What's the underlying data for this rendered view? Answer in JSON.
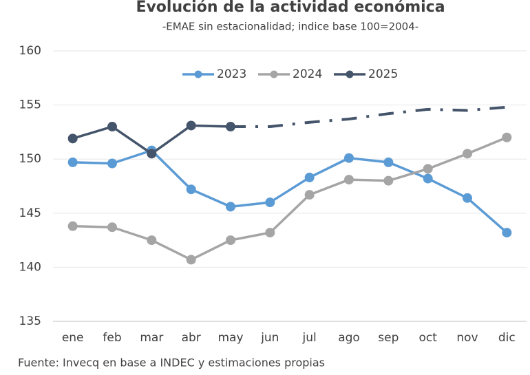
{
  "chart_data": {
    "type": "line",
    "title": "Evolución de la actividad económica",
    "subtitle": "-EMAE sin estacionalidad; indice base 100=2004-",
    "source": "Fuente: Invecq en base a INDEC y estimaciones propias",
    "categories": [
      "ene",
      "feb",
      "mar",
      "abr",
      "may",
      "jun",
      "jul",
      "ago",
      "sep",
      "oct",
      "nov",
      "dic"
    ],
    "series": [
      {
        "name": "2023",
        "color": "#5b9bd5",
        "values": [
          149.7,
          149.6,
          150.8,
          147.2,
          145.6,
          146.0,
          148.3,
          150.1,
          149.7,
          148.2,
          146.4,
          143.2
        ]
      },
      {
        "name": "2024",
        "color": "#a5a5a5",
        "values": [
          143.8,
          143.7,
          142.5,
          140.7,
          142.5,
          143.2,
          146.7,
          148.1,
          148.0,
          149.1,
          150.5,
          152.0
        ]
      },
      {
        "name": "2025",
        "color": "#44546a",
        "values": [
          151.9,
          153.0,
          150.5,
          153.1,
          153.0,
          null,
          null,
          null,
          null,
          null,
          null,
          null
        ],
        "projection": [
          null,
          null,
          null,
          null,
          153.0,
          153.0,
          153.4,
          153.7,
          154.2,
          154.6,
          154.5,
          154.8
        ]
      }
    ],
    "ylim": [
      135,
      160
    ],
    "yticks": [
      135,
      140,
      145,
      150,
      155,
      160
    ],
    "grid": true,
    "legend": "top"
  }
}
